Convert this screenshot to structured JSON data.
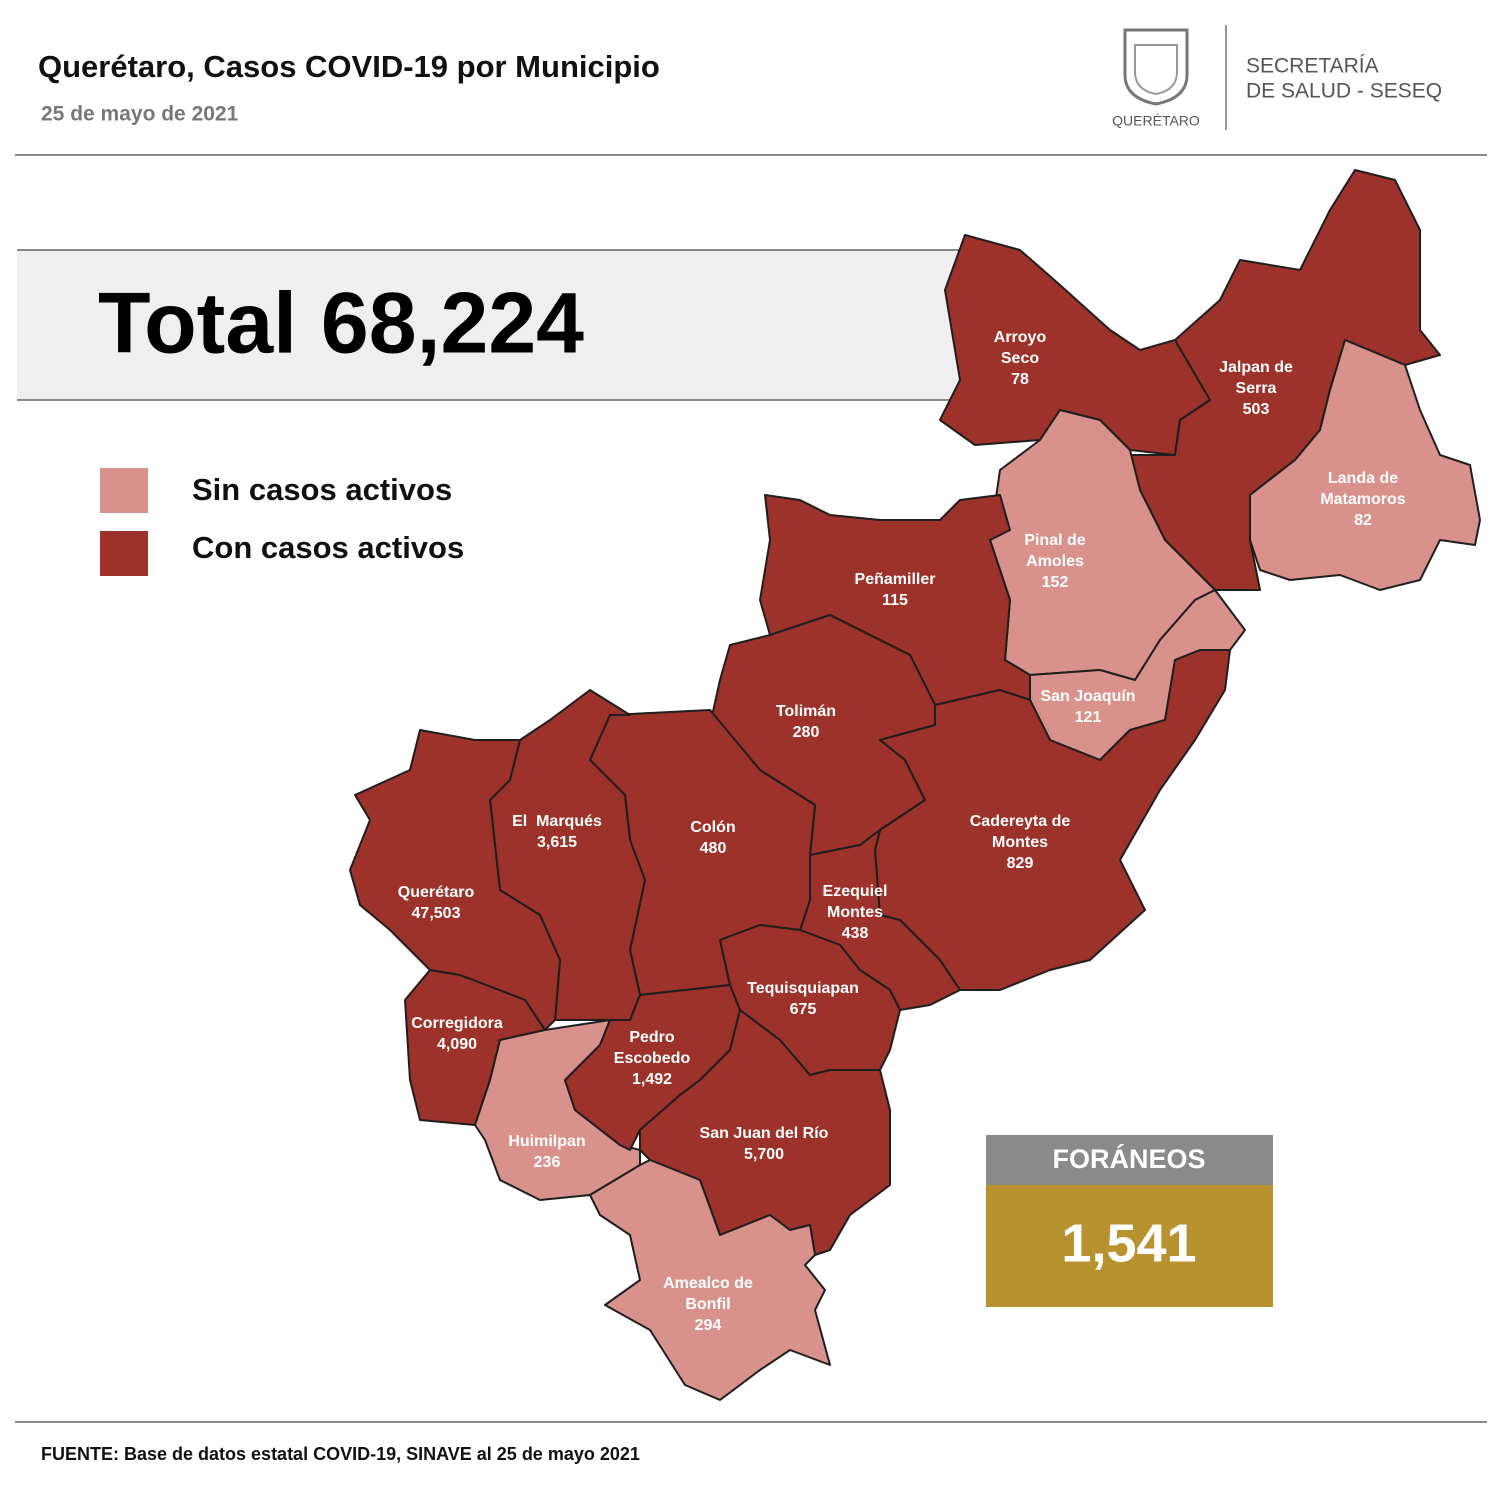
{
  "header": {
    "title": "Querétaro, Casos COVID-19 por Municipio",
    "date": "25 de mayo de 2021",
    "logo_text": "QUERÉTARO",
    "agency": [
      "SECRETARÍA",
      "DE SALUD - SESEQ"
    ]
  },
  "total": "Total 68,224",
  "legend": [
    {
      "label": "Sin casos activos",
      "color": "#d8928b"
    },
    {
      "label": "Con casos activos",
      "color": "#9c3229"
    }
  ],
  "municipalities": [
    {
      "name_lines": [
        "Arroyo",
        "Seco"
      ],
      "cases": "78",
      "active": true
    },
    {
      "name_lines": [
        "Jalpan de",
        "Serra"
      ],
      "cases": "503",
      "active": true
    },
    {
      "name_lines": [
        "Landa de",
        "Matamoros"
      ],
      "cases": "82",
      "active": false
    },
    {
      "name_lines": [
        "Pinal de",
        "Amoles"
      ],
      "cases": "152",
      "active": false
    },
    {
      "name_lines": [
        "San Joaquín"
      ],
      "cases": "121",
      "active": false
    },
    {
      "name_lines": [
        "Peñamiller"
      ],
      "cases": "115",
      "active": true
    },
    {
      "name_lines": [
        "Tolimán"
      ],
      "cases": "280",
      "active": true
    },
    {
      "name_lines": [
        "Cadereyta de",
        "Montes"
      ],
      "cases": "829",
      "active": true
    },
    {
      "name_lines": [
        "Ezequiel",
        "Montes"
      ],
      "cases": "438",
      "active": true
    },
    {
      "name_lines": [
        "Colón"
      ],
      "cases": "480",
      "active": true
    },
    {
      "name_lines": [
        "El  Marqués"
      ],
      "cases": "3,615",
      "active": true
    },
    {
      "name_lines": [
        "Querétaro"
      ],
      "cases": "47,503",
      "active": true
    },
    {
      "name_lines": [
        "Corregidora"
      ],
      "cases": "4,090",
      "active": true
    },
    {
      "name_lines": [
        "Huimilpan"
      ],
      "cases": "236",
      "active": false
    },
    {
      "name_lines": [
        "Pedro",
        "Escobedo"
      ],
      "cases": "1,492",
      "active": true
    },
    {
      "name_lines": [
        "Tequisquiapan"
      ],
      "cases": "675",
      "active": true
    },
    {
      "name_lines": [
        "San Juan del Río"
      ],
      "cases": "5,700",
      "active": true
    },
    {
      "name_lines": [
        "Amealco de",
        "Bonfil"
      ],
      "cases": "294",
      "active": false
    }
  ],
  "foraneos": {
    "label": "FORÁNEOS",
    "value": "1,541"
  },
  "source": "FUENTE: Base de datos estatal COVID-19, SINAVE al 25 de mayo 2021"
}
